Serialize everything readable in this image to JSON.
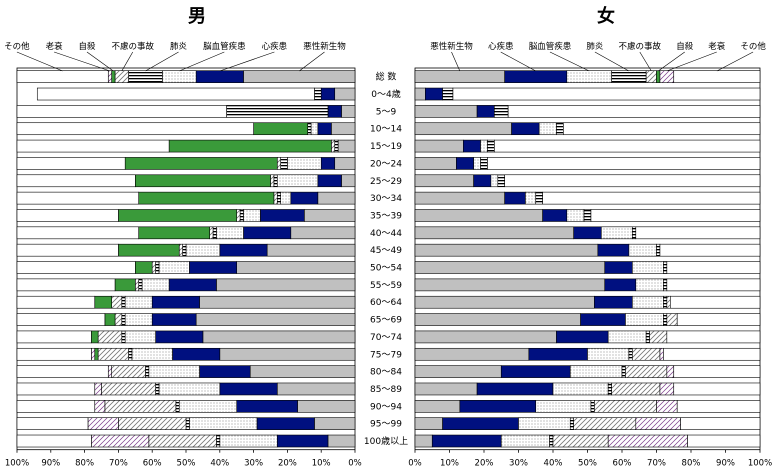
{
  "chart_data": {
    "type": "bar",
    "subtype": "stacked-horizontal-100pct",
    "unit": "%",
    "panels": [
      {
        "title": "男",
        "direction": "right-to-left",
        "xlabels": [
          "100%",
          "90%",
          "80%",
          "70%",
          "60%",
          "50%",
          "40%",
          "30%",
          "20%",
          "10%",
          "0%"
        ],
        "legend_labels": [
          "その他",
          "老衰",
          "自殺",
          "不慮の事故",
          "肺炎",
          "脳血管疾患",
          "心疾患",
          "悪性新生物"
        ]
      },
      {
        "title": "女",
        "direction": "left-to-right",
        "xlabels": [
          "0%",
          "10%",
          "20%",
          "30%",
          "40%",
          "50%",
          "60%",
          "70%",
          "80%",
          "90%",
          "100%"
        ],
        "legend_labels": [
          "悪性新生物",
          "心疾患",
          "脳血管疾患",
          "肺炎",
          "不慮の事故",
          "自殺",
          "老衰",
          "その他"
        ]
      }
    ],
    "series_names": [
      "悪性新生物",
      "心疾患",
      "脳血管疾患",
      "肺炎",
      "不慮の事故",
      "自殺",
      "老衰",
      "その他"
    ],
    "categories": [
      "総 数",
      "0～4歳",
      "5～9",
      "10～14",
      "15～19",
      "20～24",
      "25～29",
      "30～34",
      "35～39",
      "40～44",
      "45～49",
      "50～54",
      "55～59",
      "60～64",
      "65～69",
      "70～74",
      "75～79",
      "80～84",
      "85～89",
      "90～94",
      "95～99",
      "100歳以上"
    ],
    "male": [
      [
        33,
        14,
        10,
        10,
        4,
        1,
        1,
        27
      ],
      [
        6,
        4,
        0,
        2,
        0,
        0,
        0,
        82
      ],
      [
        4,
        4,
        0,
        30,
        0,
        0,
        0,
        62
      ],
      [
        7,
        4,
        2,
        1,
        0,
        16,
        0,
        70
      ],
      [
        5,
        0,
        0,
        1,
        1,
        48,
        0,
        45
      ],
      [
        6,
        4,
        10,
        2,
        1,
        45,
        0,
        32
      ],
      [
        4,
        7,
        12,
        1,
        1,
        40,
        0,
        35
      ],
      [
        11,
        8,
        3,
        1,
        1,
        40,
        0,
        36
      ],
      [
        15,
        13,
        5,
        1,
        1,
        35,
        0,
        30
      ],
      [
        19,
        14,
        8,
        1,
        1,
        21,
        0,
        36
      ],
      [
        26,
        14,
        10,
        1,
        1,
        18,
        0,
        30
      ],
      [
        35,
        14,
        9,
        1,
        1,
        5,
        0,
        35
      ],
      [
        41,
        14,
        8,
        1,
        1,
        6,
        0,
        29
      ],
      [
        46,
        14,
        8,
        1,
        3,
        5,
        0,
        23
      ],
      [
        47,
        13,
        8,
        1,
        2,
        3,
        0,
        26
      ],
      [
        45,
        14,
        9,
        1,
        7,
        2,
        0,
        22
      ],
      [
        40,
        14,
        12,
        1,
        9,
        1,
        1,
        22
      ],
      [
        31,
        15,
        15,
        1,
        10,
        0,
        1,
        27
      ],
      [
        23,
        17,
        18,
        1,
        16,
        0,
        2,
        23
      ],
      [
        17,
        18,
        17,
        1,
        21,
        0,
        3,
        23
      ],
      [
        12,
        17,
        20,
        1,
        20,
        0,
        9,
        21
      ],
      [
        8,
        15,
        17,
        1,
        20,
        0,
        17,
        22
      ]
    ],
    "female": [
      [
        26,
        18,
        13,
        10,
        3,
        1,
        4,
        25
      ],
      [
        3,
        5,
        0,
        3,
        0,
        0,
        0,
        89
      ],
      [
        18,
        5,
        0,
        4,
        0,
        0,
        0,
        73
      ],
      [
        28,
        8,
        5,
        2,
        0,
        0,
        0,
        57
      ],
      [
        14,
        5,
        2,
        2,
        0,
        0,
        0,
        77
      ],
      [
        12,
        5,
        2,
        2,
        0,
        0,
        0,
        79
      ],
      [
        17,
        5,
        2,
        2,
        0,
        0,
        0,
        74
      ],
      [
        26,
        6,
        3,
        2,
        0,
        0,
        0,
        63
      ],
      [
        37,
        7,
        5,
        2,
        0,
        0,
        0,
        49
      ],
      [
        46,
        8,
        9,
        1,
        0,
        0,
        0,
        36
      ],
      [
        53,
        9,
        8,
        1,
        0,
        0,
        0,
        29
      ],
      [
        55,
        8,
        9,
        1,
        0,
        0,
        0,
        27
      ],
      [
        55,
        9,
        8,
        1,
        0,
        0,
        0,
        27
      ],
      [
        52,
        11,
        9,
        1,
        1,
        0,
        0,
        26
      ],
      [
        48,
        13,
        11,
        1,
        3,
        0,
        0,
        24
      ],
      [
        41,
        15,
        11,
        1,
        5,
        0,
        0,
        27
      ],
      [
        33,
        17,
        12,
        1,
        8,
        0,
        1,
        28
      ],
      [
        25,
        20,
        15,
        1,
        12,
        0,
        2,
        25
      ],
      [
        18,
        22,
        16,
        1,
        14,
        0,
        4,
        25
      ],
      [
        13,
        22,
        16,
        1,
        18,
        0,
        6,
        24
      ],
      [
        8,
        22,
        15,
        1,
        18,
        0,
        13,
        23
      ],
      [
        5,
        20,
        14,
        1,
        16,
        0,
        23,
        21
      ]
    ]
  }
}
